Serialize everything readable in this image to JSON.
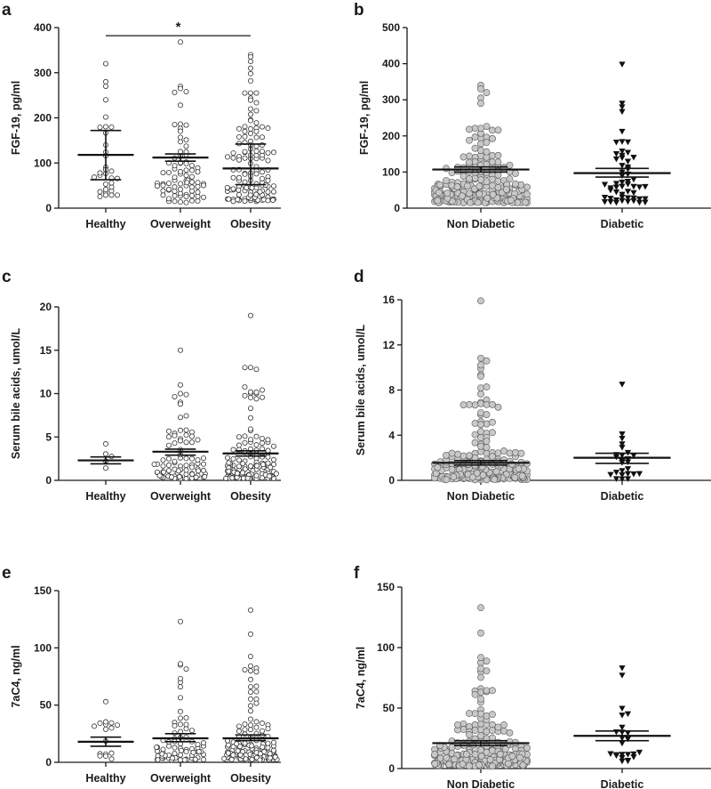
{
  "figure": {
    "panels": [
      {
        "letter": "a"
      },
      {
        "letter": "b"
      },
      {
        "letter": "c"
      },
      {
        "letter": "d"
      },
      {
        "letter": "e"
      },
      {
        "letter": "f"
      }
    ]
  },
  "chart_data": [
    {
      "panel": "a",
      "type": "scatter",
      "ylabel": "FGF-19, pg/ml",
      "ylim": [
        0,
        400
      ],
      "yticks": [
        0,
        100,
        200,
        300,
        400
      ],
      "categories": [
        "Healthy",
        "Overweight",
        "Obesity"
      ],
      "marker": "open-circle",
      "groups": [
        {
          "name": "Healthy",
          "n": 32,
          "mean": 118,
          "err_low": 63,
          "err_high": 172,
          "min": 25,
          "max": 320,
          "outliers": [
            320,
            280,
            270
          ]
        },
        {
          "name": "Overweight",
          "n": 80,
          "mean": 112,
          "err_low": 104,
          "err_high": 120,
          "min": 12,
          "max": 368,
          "outliers": [
            368,
            270,
            265,
            258
          ]
        },
        {
          "name": "Obesity",
          "n": 130,
          "mean": 88,
          "err_low": 52,
          "err_high": 142,
          "min": 15,
          "max": 340,
          "outliers": [
            340,
            335,
            325,
            310,
            298,
            282
          ]
        }
      ],
      "significance": {
        "from": "Healthy",
        "to": "Obesity",
        "y": 382,
        "label": "*"
      }
    },
    {
      "panel": "b",
      "type": "scatter",
      "ylabel": "FGF-19, pg/ml",
      "ylim": [
        0,
        500
      ],
      "yticks": [
        0,
        100,
        200,
        300,
        400,
        500
      ],
      "categories": [
        "Non Diabetic",
        "Diabetic"
      ],
      "groups": [
        {
          "name": "Non Diabetic",
          "marker": "filled-circle",
          "n": 220,
          "mean": 107,
          "err_low": 100,
          "err_high": 114,
          "min": 15,
          "max": 340,
          "outliers": [
            340,
            330,
            320,
            305,
            290
          ]
        },
        {
          "name": "Diabetic",
          "marker": "filled-triangle-down",
          "n": 55,
          "mean": 97,
          "err_low": 86,
          "err_high": 110,
          "min": 15,
          "max": 398,
          "outliers": [
            398,
            290,
            280
          ]
        }
      ]
    },
    {
      "panel": "c",
      "type": "scatter",
      "ylabel": "Serum bile acids, umol/L",
      "ylim": [
        0,
        20
      ],
      "yticks": [
        0,
        5,
        10,
        15,
        20
      ],
      "categories": [
        "Healthy",
        "Overweight",
        "Obesity"
      ],
      "marker": "open-circle",
      "groups": [
        {
          "name": "Healthy",
          "n": 5,
          "mean": 2.3,
          "err_low": 1.9,
          "err_high": 2.7,
          "min": 1.0,
          "max": 4.2,
          "outliers": [
            4.2
          ]
        },
        {
          "name": "Overweight",
          "n": 80,
          "mean": 3.3,
          "err_low": 2.9,
          "err_high": 3.6,
          "min": 0.2,
          "max": 15,
          "outliers": [
            15,
            11,
            10,
            9,
            8.8
          ]
        },
        {
          "name": "Obesity",
          "n": 130,
          "mean": 3.1,
          "err_low": 2.8,
          "err_high": 3.4,
          "min": 0.2,
          "max": 19,
          "outliers": [
            19,
            13,
            10,
            10,
            8.3
          ]
        }
      ]
    },
    {
      "panel": "d",
      "type": "scatter",
      "ylabel": "Serum bile acids, umol/L",
      "ylim": [
        0,
        16
      ],
      "yticks": [
        0,
        4,
        8,
        12,
        16
      ],
      "categories": [
        "Non Diabetic",
        "Diabetic"
      ],
      "groups": [
        {
          "name": "Non Diabetic",
          "marker": "filled-circle",
          "n": 200,
          "mean": 1.55,
          "err_low": 1.35,
          "err_high": 1.75,
          "min": 0.05,
          "max": 15.9,
          "outliers": [
            15.9,
            9.9,
            6.9,
            6.8,
            5.2,
            5.0
          ]
        },
        {
          "name": "Diabetic",
          "marker": "filled-triangle-down",
          "n": 25,
          "mean": 2.0,
          "err_low": 1.5,
          "err_high": 2.4,
          "min": 0.1,
          "max": 8.5,
          "outliers": [
            8.5,
            4.1,
            3.7
          ]
        }
      ]
    },
    {
      "panel": "e",
      "type": "scatter",
      "ylabel": "7aC4, ng/ml",
      "ylim": [
        0,
        150
      ],
      "yticks": [
        0,
        50,
        100,
        150
      ],
      "categories": [
        "Healthy",
        "Overweight",
        "Obesity"
      ],
      "marker": "open-circle",
      "groups": [
        {
          "name": "Healthy",
          "n": 16,
          "mean": 18,
          "err_low": 14,
          "err_high": 22,
          "min": 2,
          "max": 53,
          "outliers": [
            53,
            33,
            30
          ]
        },
        {
          "name": "Overweight",
          "n": 75,
          "mean": 21,
          "err_low": 18,
          "err_high": 25,
          "min": 2,
          "max": 123,
          "outliers": [
            123,
            85,
            70,
            66
          ]
        },
        {
          "name": "Obesity",
          "n": 130,
          "mean": 21,
          "err_low": 19,
          "err_high": 24,
          "min": 2,
          "max": 133,
          "outliers": [
            133,
            112,
            80,
            66
          ]
        }
      ]
    },
    {
      "panel": "f",
      "type": "scatter",
      "ylabel": "7aC4, ng/ml",
      "ylim": [
        0,
        150
      ],
      "yticks": [
        0,
        50,
        100,
        150
      ],
      "categories": [
        "Non Diabetic",
        "Diabetic"
      ],
      "groups": [
        {
          "name": "Non Diabetic",
          "marker": "filled-circle",
          "n": 220,
          "mean": 21,
          "err_low": 19,
          "err_high": 23,
          "min": 2,
          "max": 133,
          "outliers": [
            133,
            112,
            80,
            66,
            63
          ]
        },
        {
          "name": "Diabetic",
          "marker": "filled-triangle-down",
          "n": 24,
          "mean": 27,
          "err_low": 23,
          "err_high": 31,
          "min": 6,
          "max": 83,
          "outliers": [
            83,
            77,
            44
          ]
        }
      ]
    }
  ]
}
